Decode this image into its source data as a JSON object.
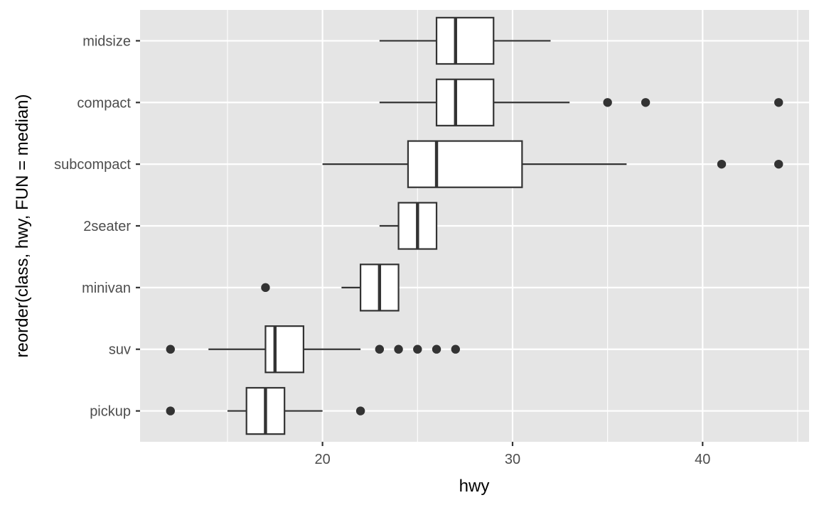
{
  "chart_data": {
    "type": "boxplot",
    "orientation": "horizontal",
    "xlabel": "hwy",
    "ylabel": "reorder(class, hwy, FUN = median)",
    "xlim": [
      10.4,
      45.6
    ],
    "x_ticks": [
      20,
      30,
      40
    ],
    "x_minor_ticks": [
      15,
      25,
      35,
      45
    ],
    "grid": true,
    "legend": "none",
    "categories": [
      "midsize",
      "compact",
      "subcompact",
      "2seater",
      "minivan",
      "suv",
      "pickup"
    ],
    "boxes": [
      {
        "category": "midsize",
        "lower_whisker": 23,
        "q1": 26,
        "median": 27,
        "q3": 29,
        "upper_whisker": 32,
        "outliers": []
      },
      {
        "category": "compact",
        "lower_whisker": 23,
        "q1": 26,
        "median": 27,
        "q3": 29,
        "upper_whisker": 33,
        "outliers": [
          35,
          37,
          44
        ]
      },
      {
        "category": "subcompact",
        "lower_whisker": 20,
        "q1": 24.5,
        "median": 26,
        "q3": 30.5,
        "upper_whisker": 36,
        "outliers": [
          41,
          44
        ]
      },
      {
        "category": "2seater",
        "lower_whisker": 23,
        "q1": 24,
        "median": 25,
        "q3": 26,
        "upper_whisker": 26,
        "outliers": []
      },
      {
        "category": "minivan",
        "lower_whisker": 21,
        "q1": 22,
        "median": 23,
        "q3": 24,
        "upper_whisker": 24,
        "outliers": [
          17
        ]
      },
      {
        "category": "suv",
        "lower_whisker": 14,
        "q1": 17,
        "median": 17.5,
        "q3": 19,
        "upper_whisker": 22,
        "outliers": [
          12,
          23,
          24,
          25,
          26,
          27
        ]
      },
      {
        "category": "pickup",
        "lower_whisker": 15,
        "q1": 16,
        "median": 17,
        "q3": 18,
        "upper_whisker": 20,
        "outliers": [
          12,
          22
        ]
      }
    ],
    "colors": {
      "panel_background": "#e5e5e5",
      "grid": "#ffffff",
      "box_fill": "#ffffff",
      "box_outline": "#333333",
      "tick_text": "#4d4d4d",
      "axis_title": "#000000"
    }
  }
}
